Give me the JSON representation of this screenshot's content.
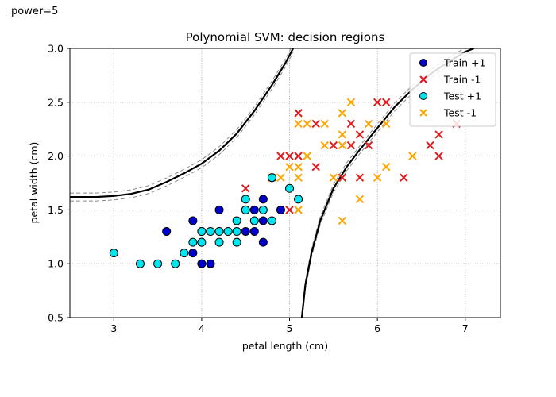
{
  "figure_label": "power=5",
  "chart_data": {
    "type": "scatter",
    "title": "Polynomial SVM: decision regions",
    "xlabel": "petal length (cm)",
    "ylabel": "petal width (cm)",
    "xlim": [
      2.5,
      7.4
    ],
    "ylim": [
      0.5,
      3.0
    ],
    "xticks": [
      3,
      4,
      5,
      6,
      7
    ],
    "yticks": [
      0.5,
      1.0,
      1.5,
      2.0,
      2.5,
      3.0
    ],
    "grid": true,
    "legend_position": "top-right",
    "series": [
      {
        "name": "Train +1",
        "marker": "circle",
        "color": "#0000cc",
        "points": [
          [
            3.9,
            1.4
          ],
          [
            3.6,
            1.3
          ],
          [
            3.9,
            1.1
          ],
          [
            4.0,
            1.0
          ],
          [
            4.1,
            1.0
          ],
          [
            4.0,
            1.3
          ],
          [
            4.2,
            1.5
          ],
          [
            4.5,
            1.5
          ],
          [
            4.5,
            1.3
          ],
          [
            4.6,
            1.5
          ],
          [
            4.6,
            1.3
          ],
          [
            4.7,
            1.6
          ],
          [
            4.7,
            1.4
          ],
          [
            4.7,
            1.2
          ],
          [
            4.9,
            1.5
          ],
          [
            4.8,
            1.8
          ]
        ]
      },
      {
        "name": "Train -1",
        "marker": "x",
        "color": "#e31a1c",
        "points": [
          [
            4.5,
            1.7
          ],
          [
            4.9,
            2.0
          ],
          [
            5.0,
            2.0
          ],
          [
            5.0,
            1.5
          ],
          [
            5.1,
            2.4
          ],
          [
            5.1,
            2.0
          ],
          [
            5.3,
            2.3
          ],
          [
            5.3,
            1.9
          ],
          [
            5.5,
            2.1
          ],
          [
            5.6,
            1.8
          ],
          [
            5.7,
            2.3
          ],
          [
            5.7,
            2.1
          ],
          [
            5.8,
            2.2
          ],
          [
            5.8,
            1.8
          ],
          [
            5.9,
            2.1
          ],
          [
            6.0,
            2.5
          ],
          [
            6.1,
            2.5
          ],
          [
            6.3,
            1.8
          ],
          [
            6.6,
            2.1
          ],
          [
            6.7,
            2.2
          ],
          [
            6.7,
            2.0
          ],
          [
            6.9,
            2.3
          ]
        ]
      },
      {
        "name": "Test +1",
        "marker": "circle",
        "color": "#00e5ee",
        "points": [
          [
            3.0,
            1.1
          ],
          [
            3.3,
            1.0
          ],
          [
            3.5,
            1.0
          ],
          [
            3.7,
            1.0
          ],
          [
            3.8,
            1.1
          ],
          [
            3.9,
            1.2
          ],
          [
            4.0,
            1.2
          ],
          [
            4.0,
            1.3
          ],
          [
            4.1,
            1.3
          ],
          [
            4.2,
            1.3
          ],
          [
            4.2,
            1.2
          ],
          [
            4.3,
            1.3
          ],
          [
            4.4,
            1.4
          ],
          [
            4.4,
            1.3
          ],
          [
            4.4,
            1.2
          ],
          [
            4.5,
            1.6
          ],
          [
            4.5,
            1.5
          ],
          [
            4.6,
            1.4
          ],
          [
            4.7,
            1.5
          ],
          [
            4.8,
            1.4
          ],
          [
            4.8,
            1.8
          ],
          [
            5.0,
            1.7
          ],
          [
            5.1,
            1.6
          ]
        ]
      },
      {
        "name": "Test -1",
        "marker": "x",
        "color": "#ffa500",
        "points": [
          [
            4.8,
            1.8
          ],
          [
            4.9,
            1.8
          ],
          [
            5.0,
            1.9
          ],
          [
            5.1,
            2.3
          ],
          [
            5.1,
            1.9
          ],
          [
            5.1,
            1.8
          ],
          [
            5.1,
            1.5
          ],
          [
            5.2,
            2.3
          ],
          [
            5.2,
            2.0
          ],
          [
            5.4,
            2.3
          ],
          [
            5.4,
            2.1
          ],
          [
            5.5,
            1.8
          ],
          [
            5.6,
            2.4
          ],
          [
            5.6,
            2.2
          ],
          [
            5.6,
            2.1
          ],
          [
            5.6,
            1.4
          ],
          [
            5.7,
            2.5
          ],
          [
            5.8,
            1.6
          ],
          [
            5.9,
            2.3
          ],
          [
            6.0,
            1.8
          ],
          [
            6.1,
            2.3
          ],
          [
            6.1,
            1.9
          ],
          [
            6.4,
            2.0
          ]
        ]
      }
    ],
    "decision_boundary": {
      "color": "#000000",
      "margin_color": "#888888",
      "left_branch": [
        [
          2.5,
          1.62
        ],
        [
          2.8,
          1.62
        ],
        [
          3.0,
          1.63
        ],
        [
          3.2,
          1.65
        ],
        [
          3.4,
          1.69
        ],
        [
          3.6,
          1.76
        ],
        [
          3.8,
          1.84
        ],
        [
          4.0,
          1.93
        ],
        [
          4.2,
          2.05
        ],
        [
          4.4,
          2.21
        ],
        [
          4.6,
          2.42
        ],
        [
          4.8,
          2.66
        ],
        [
          4.95,
          2.86
        ],
        [
          5.04,
          3.0
        ]
      ],
      "right_branch": [
        [
          5.14,
          0.5
        ],
        [
          5.18,
          0.8
        ],
        [
          5.25,
          1.1
        ],
        [
          5.35,
          1.4
        ],
        [
          5.5,
          1.7
        ],
        [
          5.65,
          1.9
        ],
        [
          5.8,
          2.06
        ],
        [
          6.0,
          2.26
        ],
        [
          6.2,
          2.46
        ],
        [
          6.4,
          2.62
        ],
        [
          6.6,
          2.76
        ],
        [
          6.8,
          2.87
        ],
        [
          7.0,
          2.97
        ],
        [
          7.1,
          3.0
        ]
      ]
    }
  }
}
